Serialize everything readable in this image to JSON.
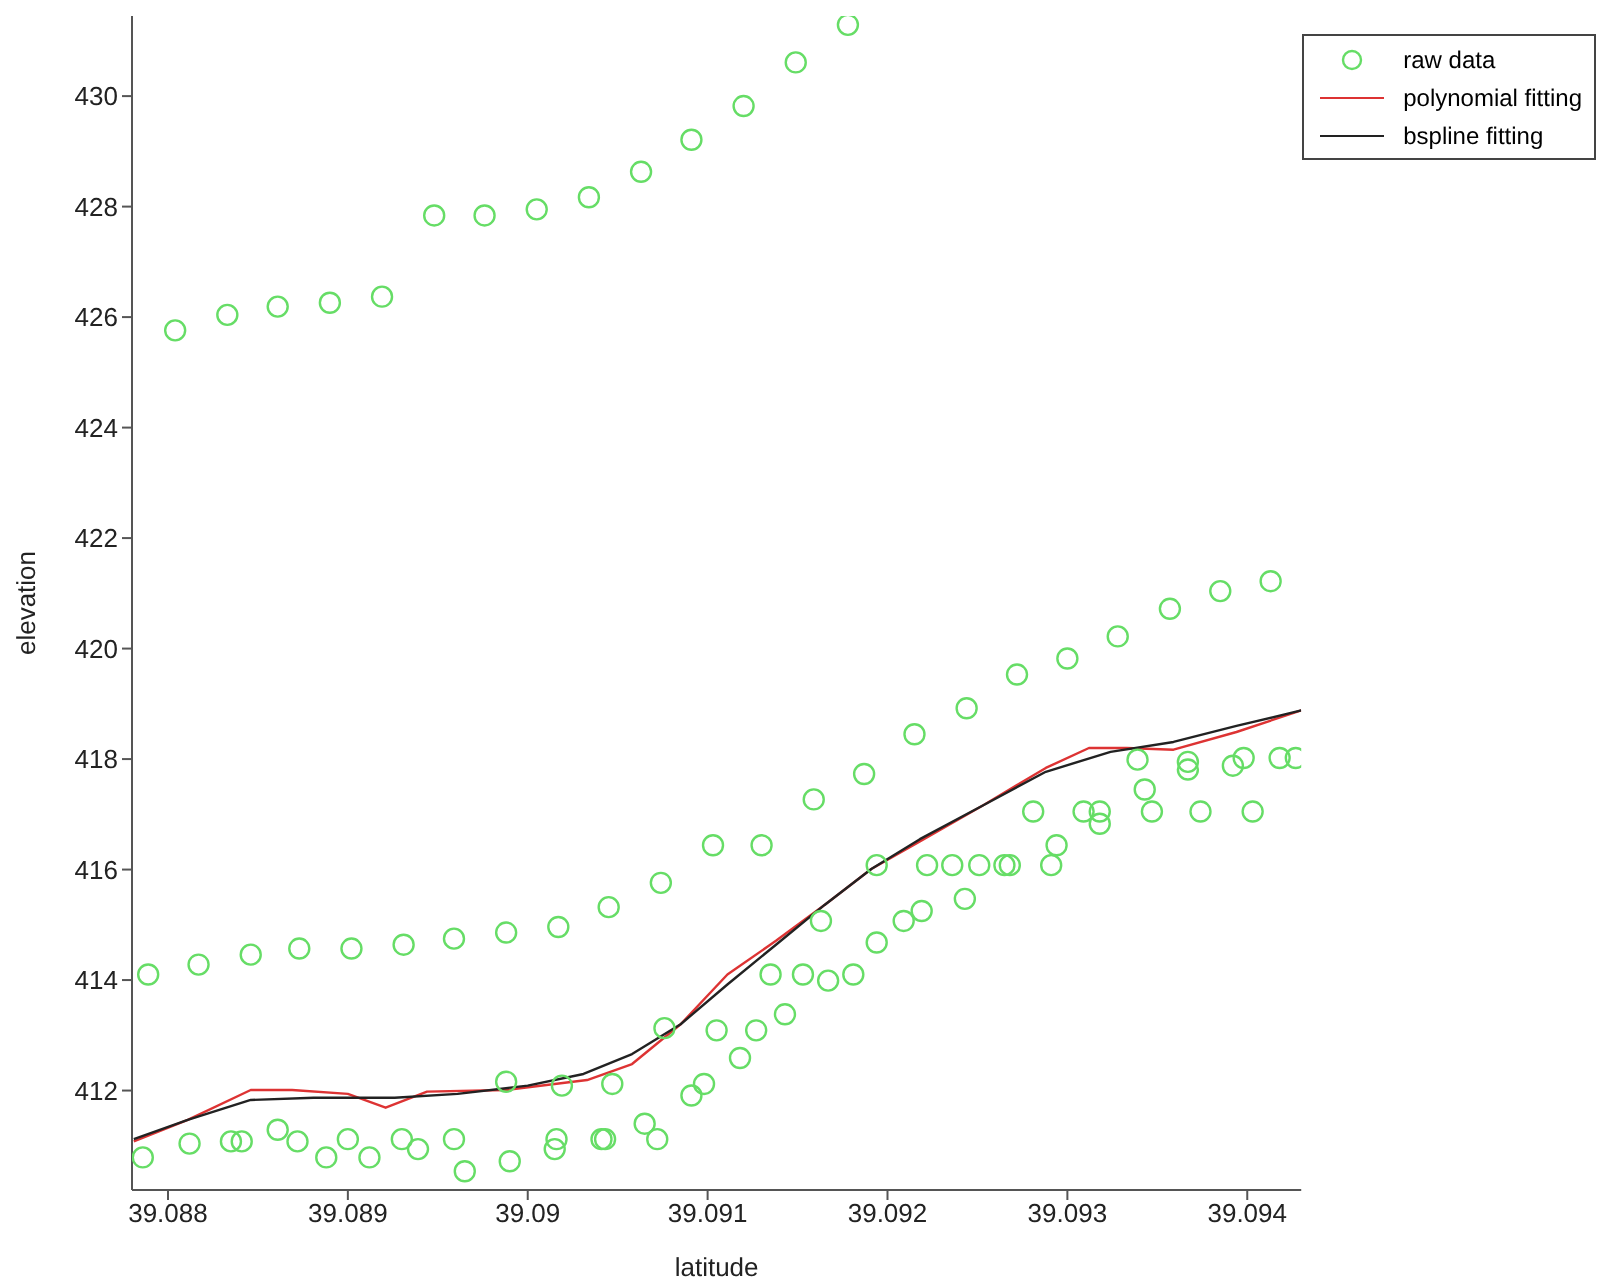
{
  "chart_data": {
    "type": "scatter",
    "xlabel": "latitude",
    "ylabel": "elevation",
    "xlim": [
      39.0878,
      39.0943
    ],
    "ylim": [
      410.2,
      431.45
    ],
    "xticks": [
      39.088,
      39.089,
      39.09,
      39.091,
      39.092,
      39.093,
      39.094
    ],
    "yticks": [
      412,
      414,
      416,
      418,
      420,
      422,
      424,
      426,
      428,
      430
    ],
    "grid": false,
    "legend": "top right",
    "series": [
      {
        "name": "raw data",
        "type": "scatter",
        "marker": "circle",
        "color": "#66dd66",
        "x": [
          39.08804,
          39.08833,
          39.08861,
          39.0889,
          39.08919,
          39.08948,
          39.08976,
          39.09005,
          39.09034,
          39.09063,
          39.09091,
          39.0912,
          39.09149,
          39.09178,
          39.08789,
          39.08817,
          39.08846,
          39.08873,
          39.08902,
          39.08931,
          39.08959,
          39.08988,
          39.09017,
          39.09045,
          39.09074,
          39.09103,
          39.0913,
          39.09159,
          39.09187,
          39.09215,
          39.09244,
          39.09272,
          39.093,
          39.09328,
          39.09357,
          39.09385,
          39.09413,
          39.08786,
          39.08812,
          39.08835,
          39.08841,
          39.08861,
          39.08872,
          39.08888,
          39.089,
          39.08912,
          39.0893,
          39.08939,
          39.08959,
          39.08965,
          39.08988,
          39.0899,
          39.09016,
          39.09015,
          39.09019,
          39.09041,
          39.09043,
          39.09047,
          39.09065,
          39.09072,
          39.09076,
          39.09091,
          39.09098,
          39.09105,
          39.09118,
          39.09127,
          39.09143,
          39.09135,
          39.09153,
          39.09163,
          39.09167,
          39.09181,
          39.09194,
          39.09194,
          39.09209,
          39.09219,
          39.09222,
          39.09236,
          39.09243,
          39.09251,
          39.09265,
          39.09268,
          39.09281,
          39.09291,
          39.09294,
          39.09309,
          39.09318,
          39.09318,
          39.09339,
          39.09343,
          39.09347,
          39.09367,
          39.09367,
          39.09374,
          39.09392,
          39.09398,
          39.09403,
          39.09418,
          39.09427
        ],
        "values": [
          425.76,
          426.04,
          426.19,
          426.26,
          426.37,
          427.84,
          427.84,
          427.95,
          428.17,
          428.63,
          429.21,
          429.82,
          430.61,
          431.29,
          414.1,
          414.28,
          414.46,
          414.57,
          414.57,
          414.64,
          414.75,
          414.86,
          414.96,
          415.32,
          415.76,
          416.44,
          416.44,
          417.27,
          417.73,
          418.45,
          418.92,
          419.53,
          419.82,
          420.22,
          420.72,
          421.04,
          421.22,
          410.79,
          411.04,
          411.08,
          411.08,
          411.29,
          411.08,
          410.79,
          411.12,
          410.79,
          411.12,
          410.94,
          411.12,
          410.54,
          412.16,
          410.72,
          411.12,
          410.94,
          412.09,
          411.12,
          411.12,
          412.12,
          411.4,
          411.12,
          413.13,
          411.91,
          412.12,
          413.09,
          412.59,
          413.09,
          413.38,
          414.1,
          414.1,
          415.07,
          413.99,
          414.1,
          414.68,
          416.08,
          415.07,
          415.25,
          416.08,
          416.08,
          415.47,
          416.08,
          416.08,
          416.08,
          417.05,
          416.08,
          416.44,
          417.05,
          417.05,
          416.83,
          417.99,
          417.45,
          417.05,
          417.95,
          417.81,
          417.05,
          417.88,
          418.02,
          417.05,
          418.02,
          418.02
        ]
      },
      {
        "name": "polynomial fitting",
        "type": "line",
        "marker": "none",
        "line_style": "solid",
        "color": "#dd3333",
        "x": [
          39.08781,
          39.08811,
          39.08846,
          39.08869,
          39.089,
          39.08921,
          39.08944,
          39.08988,
          39.09033,
          39.09058,
          39.09085,
          39.09111,
          39.09138,
          39.09165,
          39.09191,
          39.09218,
          39.09253,
          39.09288,
          39.09312,
          39.09333,
          39.09359,
          39.09394,
          39.0943
        ],
        "values": [
          411.08,
          411.47,
          412.01,
          412.01,
          411.94,
          411.69,
          411.98,
          412.01,
          412.19,
          412.48,
          413.2,
          414.1,
          414.71,
          415.36,
          416.01,
          416.51,
          417.16,
          417.84,
          418.2,
          418.2,
          418.17,
          418.49,
          418.88
        ]
      },
      {
        "name": "bspline fitting",
        "type": "line",
        "marker": "none",
        "line_style": "solid",
        "color": "#222222",
        "x": [
          39.08781,
          39.08811,
          39.08846,
          39.08881,
          39.08926,
          39.08961,
          39.09,
          39.09031,
          39.09058,
          39.09085,
          39.09111,
          39.09138,
          39.09165,
          39.09191,
          39.09218,
          39.09253,
          39.09288,
          39.09324,
          39.09359,
          39.09394,
          39.0943
        ],
        "values": [
          411.12,
          411.47,
          411.83,
          411.87,
          411.87,
          411.94,
          412.09,
          412.3,
          412.66,
          413.2,
          413.92,
          414.64,
          415.36,
          416.01,
          416.55,
          417.16,
          417.77,
          418.13,
          418.31,
          418.6,
          418.88
        ]
      }
    ]
  }
}
